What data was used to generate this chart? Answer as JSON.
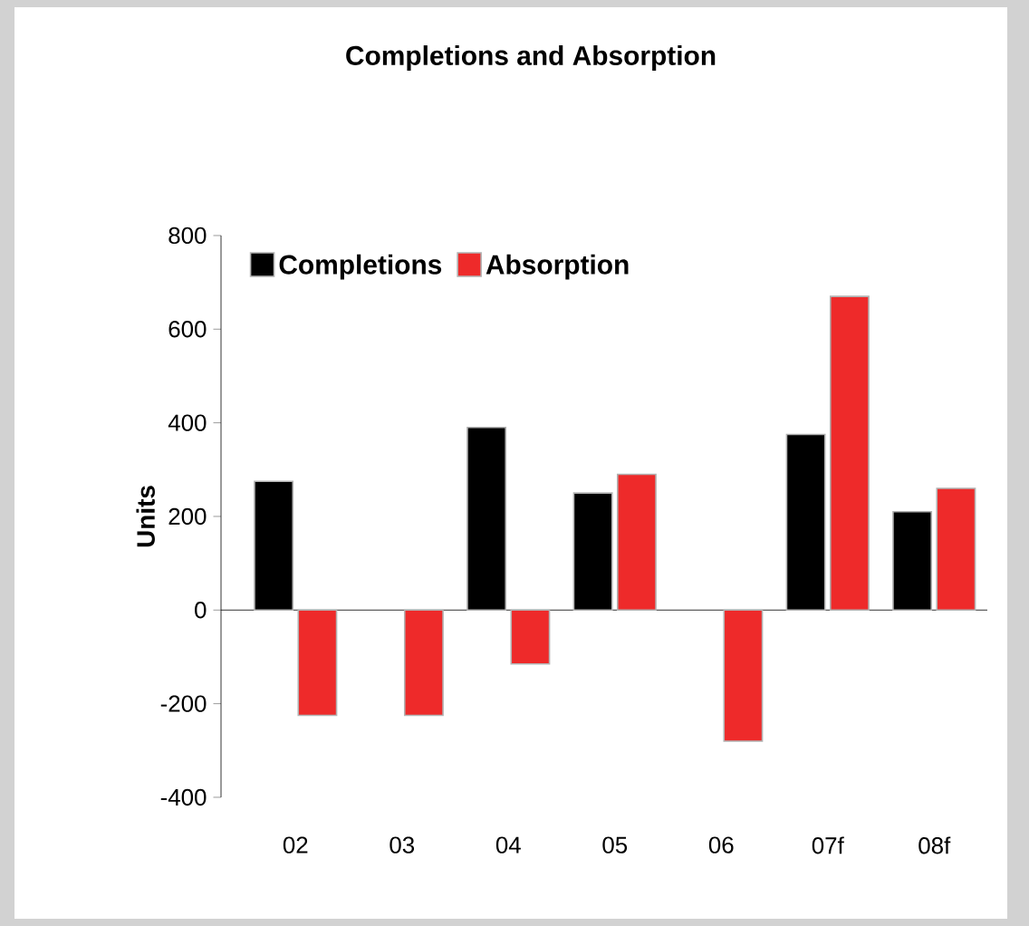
{
  "chart_data": {
    "type": "bar",
    "title": "Completions and Absorption",
    "ylabel": "Units",
    "categories": [
      "02",
      "03",
      "04",
      "05",
      "06",
      "07f",
      "08f"
    ],
    "series": [
      {
        "name": "Completions",
        "color": "#000000",
        "values": [
          275,
          null,
          390,
          250,
          null,
          375,
          210
        ]
      },
      {
        "name": "Absorption",
        "color": "#ee2a2a",
        "values": [
          -225,
          -225,
          -115,
          290,
          -280,
          670,
          260
        ]
      }
    ],
    "ylim": [
      -400,
      800
    ],
    "yticks": [
      -400,
      -200,
      0,
      200,
      400,
      600,
      800
    ],
    "legend": "top left"
  }
}
